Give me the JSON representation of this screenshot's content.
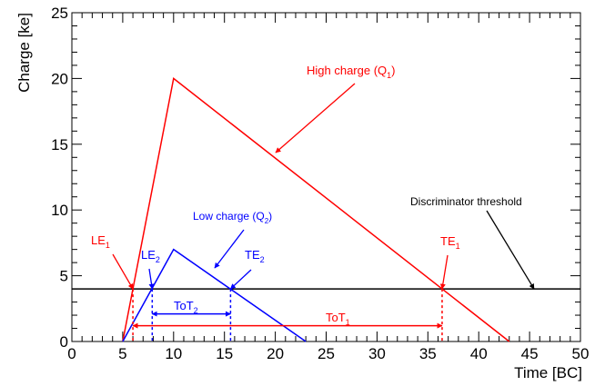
{
  "colors": {
    "high": "#ff0000",
    "low": "#0000ff",
    "threshold": "#000000",
    "axis": "#000000"
  },
  "chart_data": {
    "type": "line",
    "xlabel": "Time [BC]",
    "ylabel": "Charge [ke]",
    "xlim": [
      0,
      50
    ],
    "ylim": [
      0,
      25
    ],
    "x_ticks": [
      "0",
      "5",
      "10",
      "15",
      "20",
      "25",
      "30",
      "35",
      "40",
      "45",
      "50"
    ],
    "y_ticks": [
      "0",
      "5",
      "10",
      "15",
      "20",
      "25"
    ],
    "grid": false,
    "series": [
      {
        "name": "High charge (Q1)",
        "x": [
          5,
          10,
          43
        ],
        "y": [
          0,
          20,
          0
        ]
      },
      {
        "name": "Low charge (Q2)",
        "x": [
          5,
          10,
          23
        ],
        "y": [
          0,
          7,
          0
        ]
      }
    ],
    "threshold": {
      "label": "Discriminator threshold",
      "y": 4
    },
    "crossings": {
      "LE1": {
        "base": "LE",
        "sub": "1",
        "x": 6,
        "y": 4
      },
      "TE1": {
        "base": "TE",
        "sub": "1",
        "x": 36.4,
        "y": 4
      },
      "LE2": {
        "base": "LE",
        "sub": "2",
        "x": 7.9,
        "y": 4
      },
      "TE2": {
        "base": "TE",
        "sub": "2",
        "x": 15.6,
        "y": 4
      }
    },
    "tot": {
      "ToT1": {
        "base": "ToT",
        "sub": "1",
        "x1": 6,
        "x2": 36.4,
        "y": 1.2
      },
      "ToT2": {
        "base": "ToT",
        "sub": "2",
        "x1": 7.9,
        "x2": 15.6,
        "y": 2.1
      }
    },
    "annotations": {
      "high": {
        "base": "High charge (Q",
        "sub": "1",
        "suffix": ")"
      },
      "low": {
        "base": "Low charge (Q",
        "sub": "2",
        "suffix": ")"
      }
    }
  }
}
